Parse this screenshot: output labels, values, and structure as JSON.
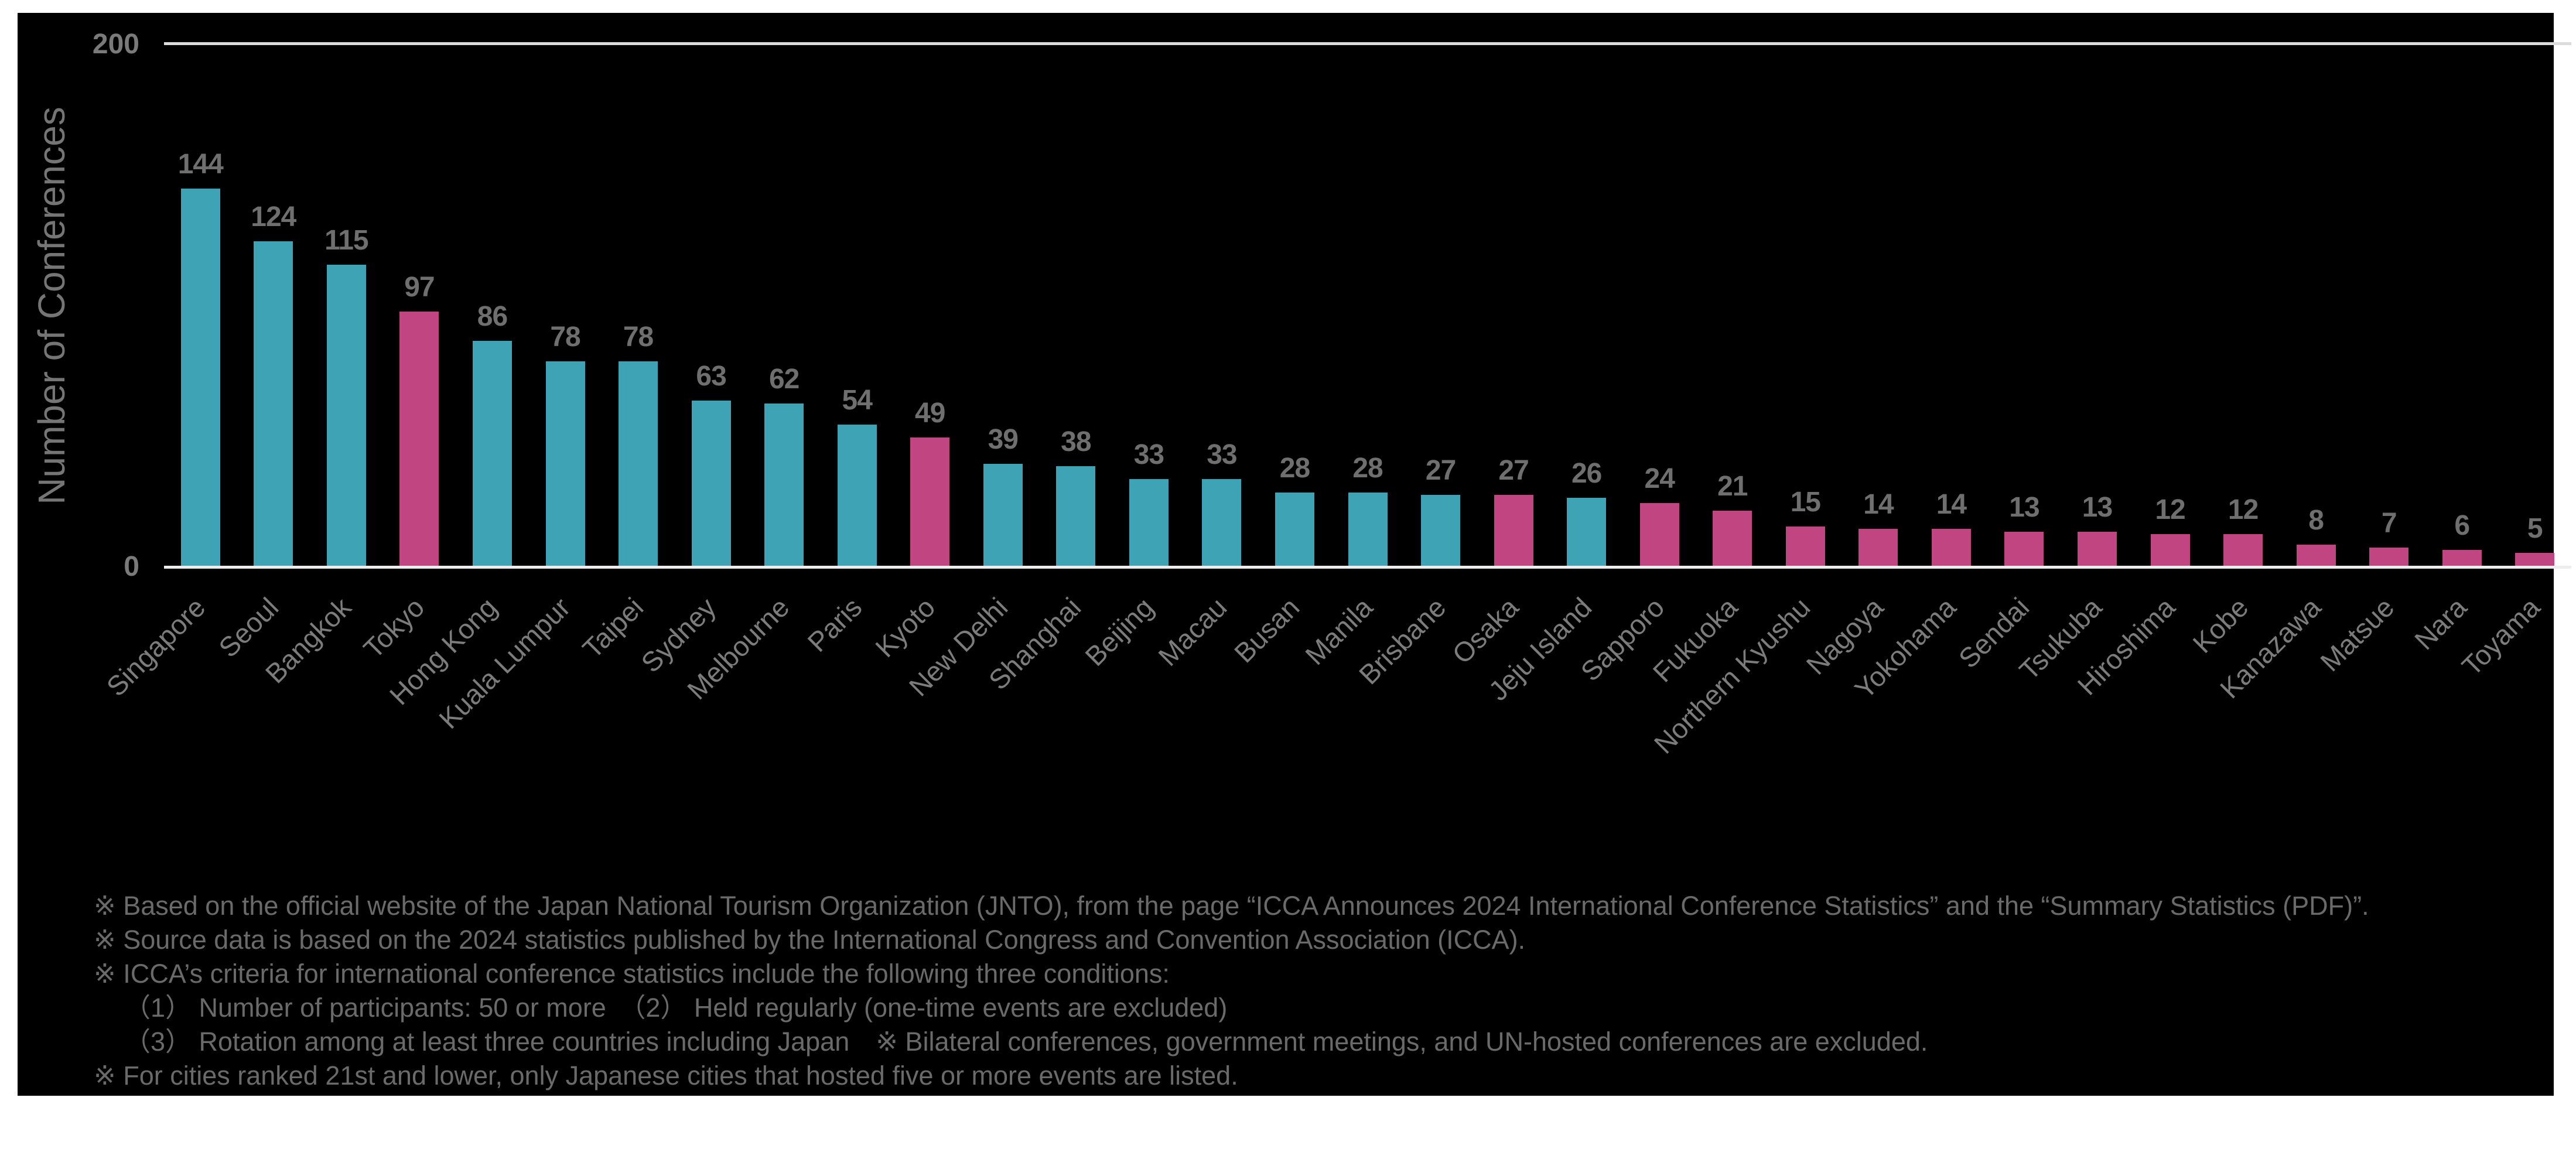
{
  "chart_data": {
    "type": "bar",
    "title": "",
    "xlabel": "",
    "ylabel": "Number of Conferences",
    "ylim": [
      0,
      200
    ],
    "ytick_labels": [
      "200",
      "0"
    ],
    "grid": "single horizontal gridline at y=200, baseline at y=0",
    "legend": "none",
    "categories": [
      "Singapore",
      "Seoul",
      "Bangkok",
      "Tokyo",
      "Hong Kong",
      "Kuala Lumpur",
      "Taipei",
      "Sydney",
      "Melbourne",
      "Paris",
      "Kyoto",
      "New Delhi",
      "Shanghai",
      "Beijing",
      "Macau",
      "Busan",
      "Manila",
      "Brisbane",
      "Osaka",
      "Jeju Island",
      "Sapporo",
      "Fukuoka",
      "Northern Kyushu",
      "Nagoya",
      "Yokohama",
      "Sendai",
      "Tsukuba",
      "Hiroshima",
      "Kobe",
      "Kanazawa",
      "Matsue",
      "Nara",
      "Toyama"
    ],
    "values": [
      144,
      124,
      115,
      97,
      86,
      78,
      78,
      63,
      62,
      54,
      49,
      39,
      38,
      33,
      33,
      28,
      28,
      27,
      27,
      26,
      24,
      21,
      15,
      14,
      14,
      13,
      13,
      12,
      12,
      8,
      7,
      6,
      5
    ],
    "highlighted_indices": [
      3,
      10,
      18,
      20,
      21,
      22,
      23,
      24,
      25,
      26,
      27,
      28,
      29,
      30,
      31,
      32
    ],
    "colors": {
      "default_bar": "#3EA3B4",
      "highlight_bar": "#C04581",
      "background": "#000000"
    }
  },
  "footnotes": [
    "※ Based on the official website of the Japan National Tourism Organization (JNTO), from the page “ICCA Announces 2024 International Conference Statistics” and the “Summary Statistics (PDF)”.",
    "※ Source data is based on the 2024 statistics published by the International Congress and Convention Association (ICCA).",
    "※ ICCA’s criteria for international conference statistics include the following three conditions:",
    "（1） Number of participants: 50 or more　（2） Held regularly (one-time events are excluded)",
    "（3） Rotation among at least three countries including Japan　※ Bilateral conferences, government meetings, and UN-hosted conferences are excluded.",
    "※ For cities ranked 21st and lower, only Japanese cities that hosted five or more events are listed."
  ]
}
